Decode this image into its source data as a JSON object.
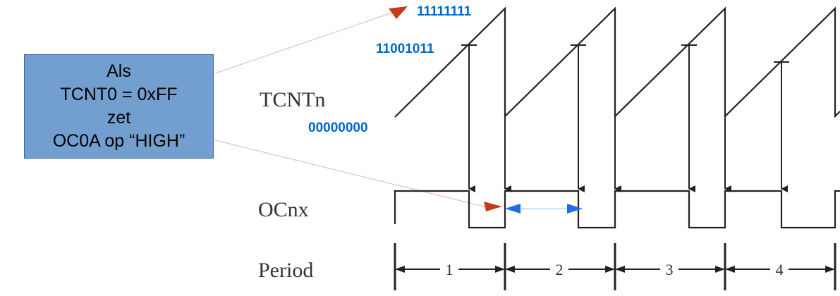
{
  "callout": {
    "lines": [
      "Als",
      "TCNT0 = 0xFF",
      "zet",
      "OC0A op “HIGH”"
    ]
  },
  "labels": {
    "max": "11111111",
    "compare": "11001011",
    "bottom": "00000000"
  },
  "signals": {
    "counter": "TCNTn",
    "output": "OCnx",
    "period": "Period"
  },
  "periods": [
    "1",
    "2",
    "3",
    "4"
  ],
  "colors": {
    "blue_label": "#0066cc",
    "callout_fill": "#729fcf",
    "red_arrow": "#c9381c",
    "blue_arrow": "#1a6fe8"
  }
}
